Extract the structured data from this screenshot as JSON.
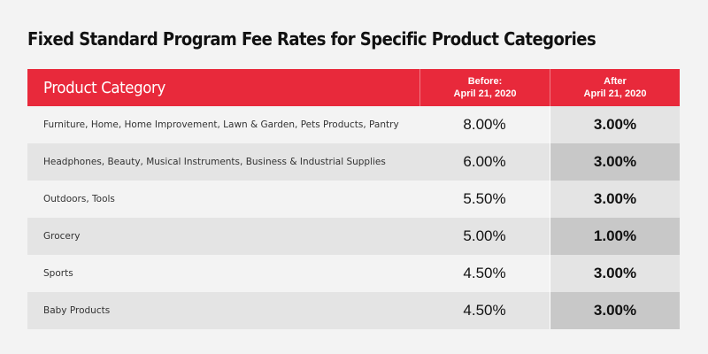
{
  "title": "Fixed Standard Program Fee Rates for Specific Product Categories",
  "table": {
    "header": {
      "category": "Product Category",
      "before_line1": "Before:",
      "before_line2": "April 21, 2020",
      "after_line1": "After",
      "after_line2": "April 21, 2020"
    },
    "colors": {
      "header_bg": "#e8293b",
      "row_light": "#f3f3f3",
      "row_dark": "#e4e4e4",
      "after_light": "#e4e4e4",
      "after_dark": "#c8c8c8"
    },
    "rows": [
      {
        "category": "Furniture, Home, Home Improvement, Lawn & Garden, Pets Products, Pantry",
        "before": "8.00%",
        "after": "3.00%"
      },
      {
        "category": "Headphones, Beauty, Musical Instruments, Business & Industrial Supplies",
        "before": "6.00%",
        "after": "3.00%"
      },
      {
        "category": "Outdoors, Tools",
        "before": "5.50%",
        "after": "3.00%"
      },
      {
        "category": "Grocery",
        "before": "5.00%",
        "after": "1.00%"
      },
      {
        "category": "Sports",
        "before": "4.50%",
        "after": "3.00%"
      },
      {
        "category": "Baby Products",
        "before": "4.50%",
        "after": "3.00%"
      }
    ]
  }
}
